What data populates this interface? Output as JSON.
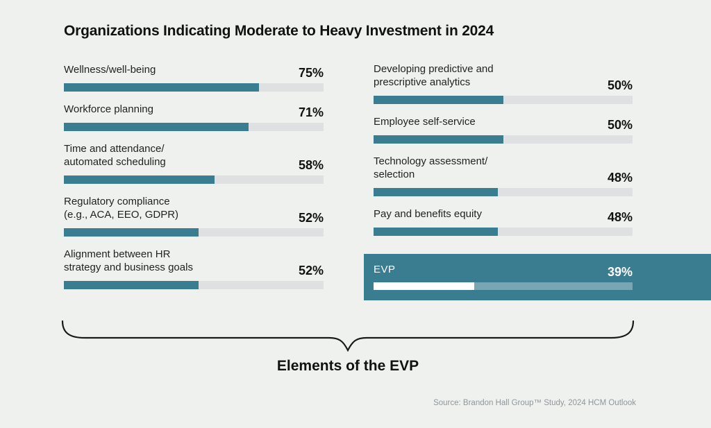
{
  "title": "Organizations Indicating Moderate to Heavy Investment in 2024",
  "brace_label": "Elements of the EVP",
  "source": "Source: Brandon Hall Group™ Study, 2024 HCM Outlook",
  "colors": {
    "background": "#eff1ef",
    "bar_fill": "#3a7d90",
    "bar_track": "#dee0e2",
    "highlight_box": "#3a7d90",
    "highlight_fill": "#ffffff",
    "highlight_track": "#7fa6b3",
    "title_text": "#111111",
    "label_text": "#222222",
    "source_text": "#8e969c"
  },
  "chart_data": {
    "type": "bar",
    "orientation": "horizontal",
    "unit": "%",
    "xlim": [
      0,
      100
    ],
    "title": "Organizations Indicating Moderate to Heavy Investment in 2024",
    "annotation": "Elements of the EVP",
    "legend": "none",
    "grid": false,
    "columns": [
      {
        "name": "left",
        "items": [
          {
            "label": "Wellness/well-being",
            "value": 75,
            "display": "75%"
          },
          {
            "label": "Workforce planning",
            "value": 71,
            "display": "71%"
          },
          {
            "label": "Time and attendance/\nautomated scheduling",
            "value": 58,
            "display": "58%"
          },
          {
            "label": "Regulatory compliance\n(e.g., ACA, EEO, GDPR)",
            "value": 52,
            "display": "52%"
          },
          {
            "label": "Alignment between HR\nstrategy and business goals",
            "value": 52,
            "display": "52%"
          }
        ]
      },
      {
        "name": "right",
        "items": [
          {
            "label": "Developing predictive and\nprescriptive analytics",
            "value": 50,
            "display": "50%"
          },
          {
            "label": "Employee self-service",
            "value": 50,
            "display": "50%"
          },
          {
            "label": "Technology assessment/\nselection",
            "value": 48,
            "display": "48%"
          },
          {
            "label": "Pay and benefits equity",
            "value": 48,
            "display": "48%"
          },
          {
            "label": "EVP",
            "value": 39,
            "display": "39%",
            "highlight": true
          }
        ]
      }
    ]
  }
}
